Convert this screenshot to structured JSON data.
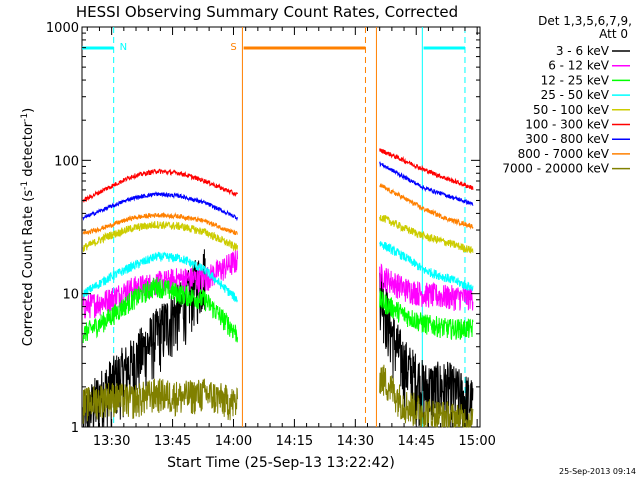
{
  "chart_data": {
    "type": "line",
    "title": "HESSI Observing Summary Count Rates, Corrected",
    "xlabel": "Start Time (25-Sep-13 13:22:42)",
    "ylabel_main": "Corrected Count Rate (s",
    "ylabel_sup1": "-1",
    "ylabel_mid": " detector",
    "ylabel_sup2": "-1",
    "ylabel_end": ")",
    "yscale": "log",
    "xlim": [
      "13:22:42",
      "15:00:42"
    ],
    "ylim": [
      1,
      1000
    ],
    "x_ticks": [
      "13:30",
      "13:45",
      "14:00",
      "14:15",
      "14:30",
      "14:45",
      "15:00"
    ],
    "x_tick_minutes": [
      450,
      465,
      480,
      495,
      510,
      525,
      540
    ],
    "y_ticks": [
      "1",
      "10",
      "100",
      "1000"
    ],
    "x_range_minutes": [
      442.7,
      540.7
    ],
    "grid": false,
    "legend_position": "right",
    "legend_header": [
      "Det 1,3,5,6,7,9,",
      "Att 0"
    ],
    "timestamp": "25-Sep-2013 09:14",
    "annotations": {
      "night_markers": [
        {
          "label": "N",
          "color": "#00ffff",
          "solid_bars": [
            [
              442.7,
              450.5
            ],
            [
              526.8,
              537.0
            ]
          ],
          "dashed_times": [
            450.5,
            537.0
          ],
          "solid_times": [
            526.5
          ]
        },
        {
          "label": "S",
          "color": "#ff8000",
          "solid_bars": [
            [
              482.5,
              512.5
            ]
          ],
          "dashed_times": [
            512.5
          ],
          "solid_times": [
            482.2,
            515.2
          ]
        }
      ]
    },
    "gaps": [
      [
        482.2,
        515.2
      ]
    ],
    "series": [
      {
        "name": "3 - 6 keV",
        "color": "#000000",
        "noise": 0.55,
        "profile": {
          "pre": [
            [
              443,
              1.2
            ],
            [
              449,
              2
            ],
            [
              455,
              3
            ],
            [
              461,
              5
            ],
            [
              467,
              8
            ],
            [
              473,
              15
            ]
          ],
          "post": [
            [
              516,
              12
            ],
            [
              519,
              5
            ],
            [
              522,
              3
            ],
            [
              527,
              2
            ],
            [
              533,
              2
            ],
            [
              539,
              1.5
            ]
          ]
        }
      },
      {
        "name": "6 - 12 keV",
        "color": "#ff00ff",
        "noise": 0.22,
        "profile": {
          "pre": [
            [
              443,
              8
            ],
            [
              449,
              9
            ],
            [
              455,
              11
            ],
            [
              461,
              12
            ],
            [
              467,
              13
            ],
            [
              473,
              13
            ],
            [
              481,
              18
            ]
          ],
          "post": [
            [
              516,
              14
            ],
            [
              522,
              11
            ],
            [
              527,
              10
            ],
            [
              533,
              9.5
            ],
            [
              539,
              9.5
            ]
          ]
        }
      },
      {
        "name": "12 - 25 keV",
        "color": "#00ff00",
        "noise": 0.18,
        "profile": {
          "pre": [
            [
              443,
              5
            ],
            [
              449,
              6.5
            ],
            [
              455,
              9
            ],
            [
              461,
              11.5
            ],
            [
              467,
              10
            ],
            [
              473,
              9
            ],
            [
              481,
              5
            ]
          ],
          "post": [
            [
              516,
              9
            ],
            [
              522,
              7
            ],
            [
              527,
              6
            ],
            [
              533,
              5.5
            ],
            [
              539,
              5.5
            ]
          ]
        }
      },
      {
        "name": "25 - 50 keV",
        "color": "#00ffff",
        "noise": 0.08,
        "profile": {
          "pre": [
            [
              443,
              10
            ],
            [
              449,
              13
            ],
            [
              455,
              16
            ],
            [
              461,
              19
            ],
            [
              467,
              18.5
            ],
            [
              473,
              15
            ],
            [
              481,
              9
            ]
          ],
          "post": [
            [
              516,
              24
            ],
            [
              522,
              19
            ],
            [
              527,
              15
            ],
            [
              533,
              13
            ],
            [
              539,
              11
            ]
          ]
        }
      },
      {
        "name": "50 - 100 keV",
        "color": "#cccc00",
        "noise": 0.07,
        "profile": {
          "pre": [
            [
              443,
              22
            ],
            [
              449,
              27
            ],
            [
              455,
              31
            ],
            [
              461,
              33
            ],
            [
              467,
              32
            ],
            [
              473,
              29
            ],
            [
              481,
              22
            ]
          ],
          "post": [
            [
              516,
              38
            ],
            [
              522,
              31
            ],
            [
              527,
              27
            ],
            [
              533,
              24
            ],
            [
              539,
              21
            ]
          ]
        }
      },
      {
        "name": "100 - 300 keV",
        "color": "#ff0000",
        "noise": 0.04,
        "profile": {
          "pre": [
            [
              443,
              50
            ],
            [
              449,
              62
            ],
            [
              455,
              76
            ],
            [
              461,
              83
            ],
            [
              467,
              80
            ],
            [
              473,
              70
            ],
            [
              481,
              55
            ]
          ],
          "post": [
            [
              516,
              120
            ],
            [
              522,
              100
            ],
            [
              527,
              85
            ],
            [
              533,
              72
            ],
            [
              539,
              62
            ]
          ]
        }
      },
      {
        "name": "300 - 800 keV",
        "color": "#0000ff",
        "noise": 0.035,
        "profile": {
          "pre": [
            [
              443,
              37
            ],
            [
              449,
              44
            ],
            [
              455,
              52
            ],
            [
              461,
              56
            ],
            [
              467,
              54
            ],
            [
              473,
              48
            ],
            [
              481,
              37
            ]
          ],
          "post": [
            [
              516,
              95
            ],
            [
              522,
              75
            ],
            [
              527,
              62
            ],
            [
              533,
              54
            ],
            [
              539,
              47
            ]
          ]
        }
      },
      {
        "name": "800 - 7000 keV",
        "color": "#ff8000",
        "noise": 0.04,
        "profile": {
          "pre": [
            [
              443,
              28
            ],
            [
              449,
              32
            ],
            [
              455,
              37
            ],
            [
              461,
              39
            ],
            [
              467,
              38
            ],
            [
              473,
              35
            ],
            [
              481,
              28
            ]
          ],
          "post": [
            [
              516,
              65
            ],
            [
              522,
              52
            ],
            [
              527,
              43
            ],
            [
              533,
              36
            ],
            [
              539,
              32
            ]
          ]
        }
      },
      {
        "name": "7000 - 20000 keV",
        "color": "#808000",
        "noise": 0.3,
        "profile": {
          "pre": [
            [
              443,
              1.5
            ],
            [
              449,
              1.7
            ],
            [
              455,
              1.6
            ],
            [
              461,
              1.8
            ],
            [
              467,
              1.7
            ],
            [
              473,
              1.8
            ],
            [
              481,
              1.5
            ]
          ],
          "post": [
            [
              516,
              2.5
            ],
            [
              522,
              1.5
            ],
            [
              527,
              1.3
            ],
            [
              533,
              1.2
            ],
            [
              539,
              1.1
            ]
          ]
        }
      }
    ]
  }
}
